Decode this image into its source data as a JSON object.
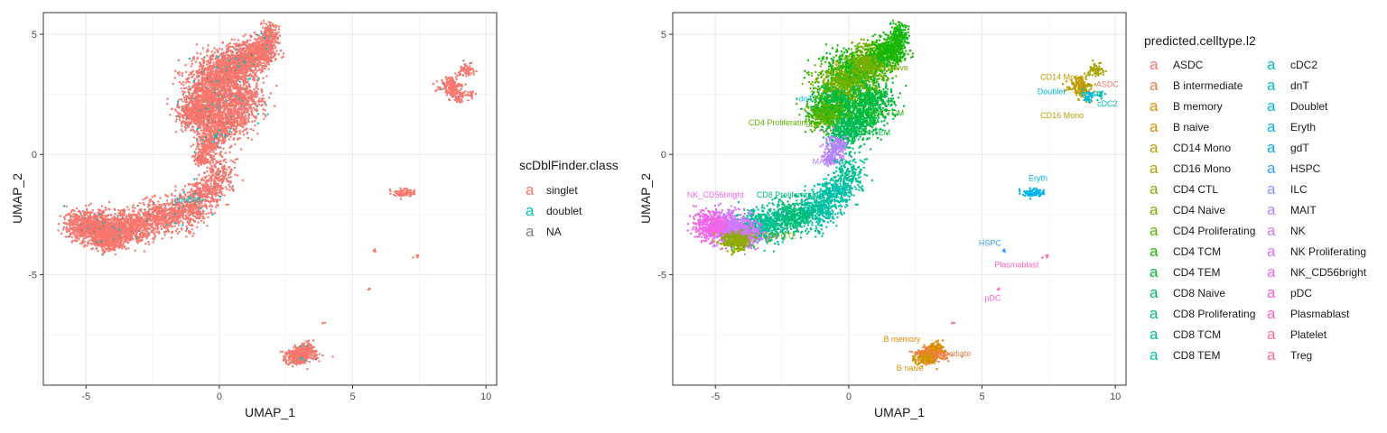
{
  "chart_data": [
    {
      "type": "scatter",
      "xlabel": "UMAP_1",
      "ylabel": "UMAP_2",
      "xlim": [
        -6.6,
        10.4
      ],
      "ylim": [
        -9.6,
        5.9
      ],
      "x_ticks": [
        -5,
        0,
        5,
        10
      ],
      "y_ticks": [
        5,
        0,
        -5
      ],
      "grid": true,
      "legend_title": "scDblFinder.class",
      "legend_position": "right",
      "series": [
        {
          "name": "singlet",
          "color": "#F8766D"
        },
        {
          "name": "doublet",
          "color": "#00BFC4"
        },
        {
          "name": "NA",
          "color": "#7F7F7F"
        }
      ],
      "annotations": [
        {
          "text": "doublet",
          "x": -1.2,
          "y": -2.0,
          "color": "#00BFC4"
        }
      ]
    },
    {
      "type": "scatter",
      "xlabel": "UMAP_1",
      "ylabel": "UMAP_2",
      "xlim": [
        -6.6,
        10.4
      ],
      "ylim": [
        -9.6,
        5.9
      ],
      "x_ticks": [
        -5,
        0,
        5,
        10
      ],
      "y_ticks": [
        5,
        0,
        -5
      ],
      "grid": true,
      "legend_title": "predicted.celltype.l2",
      "legend_position": "right",
      "series": [
        {
          "name": "ASDC",
          "color": "#F8766D"
        },
        {
          "name": "B intermediate",
          "color": "#EF7F49"
        },
        {
          "name": "B memory",
          "color": "#E38900"
        },
        {
          "name": "B naive",
          "color": "#D39200"
        },
        {
          "name": "CD14 Mono",
          "color": "#C09B00"
        },
        {
          "name": "CD16 Mono",
          "color": "#AAA200"
        },
        {
          "name": "CD4 CTL",
          "color": "#93AA00"
        },
        {
          "name": "CD4 Naive",
          "color": "#7AAF00"
        },
        {
          "name": "CD4 Proliferating",
          "color": "#5BB300"
        },
        {
          "name": "CD4 TCM",
          "color": "#1AB700"
        },
        {
          "name": "CD4 TEM",
          "color": "#00BA38"
        },
        {
          "name": "CD8 Naive",
          "color": "#00BC59"
        },
        {
          "name": "CD8 Proliferating",
          "color": "#00BE76"
        },
        {
          "name": "CD8 TCM",
          "color": "#00C08D"
        },
        {
          "name": "CD8 TEM",
          "color": "#00C1A3"
        },
        {
          "name": "cDC2",
          "color": "#00C0B8"
        },
        {
          "name": "dnT",
          "color": "#00BECB"
        },
        {
          "name": "Doublet",
          "color": "#00BADB"
        },
        {
          "name": "Eryth",
          "color": "#00B4EA"
        },
        {
          "name": "gdT",
          "color": "#00ACF7"
        },
        {
          "name": "HSPC",
          "color": "#35A2FF"
        },
        {
          "name": "ILC",
          "color": "#8B93FF"
        },
        {
          "name": "MAIT",
          "color": "#B385FF"
        },
        {
          "name": "NK",
          "color": "#CF78FF"
        },
        {
          "name": "NK Proliferating",
          "color": "#E36EF6"
        },
        {
          "name": "NK_CD56bright",
          "color": "#F166E8"
        },
        {
          "name": "pDC",
          "color": "#FC61D5"
        },
        {
          "name": "Plasmablast",
          "color": "#FF62BF"
        },
        {
          "name": "Platelet",
          "color": "#FF67A4"
        },
        {
          "name": "Treg",
          "color": "#FF6C91"
        }
      ],
      "annotations": [
        {
          "text": "CD14 Mono",
          "x": 8.0,
          "y": 3.1,
          "color": "#C09B00"
        },
        {
          "text": "ASDC",
          "x": 9.7,
          "y": 2.8,
          "color": "#F8766D"
        },
        {
          "text": "Doublet",
          "x": 7.6,
          "y": 2.5,
          "color": "#00BADB"
        },
        {
          "text": "cDC2",
          "x": 9.7,
          "y": 2.0,
          "color": "#00C0B8"
        },
        {
          "text": "CD16 Mono",
          "x": 8.0,
          "y": 1.5,
          "color": "#AAA200"
        },
        {
          "text": "CD4 Naive",
          "x": 1.5,
          "y": 3.5,
          "color": "#7AAF00"
        },
        {
          "text": "dnT",
          "x": -1.6,
          "y": 2.2,
          "color": "#00BECB"
        },
        {
          "text": "CD4 Proliferating",
          "x": -2.6,
          "y": 1.2,
          "color": "#5BB300"
        },
        {
          "text": "CD4 TCM",
          "x": 1.4,
          "y": 1.6,
          "color": "#1AB700"
        },
        {
          "text": "CD4 TEM",
          "x": 0.9,
          "y": 0.8,
          "color": "#00BA38"
        },
        {
          "text": "MAIT",
          "x": -1.0,
          "y": -0.4,
          "color": "#B385FF"
        },
        {
          "text": "Eryth",
          "x": 7.1,
          "y": -1.1,
          "color": "#00B4EA"
        },
        {
          "text": "NK_CD56bright",
          "x": -5.0,
          "y": -1.8,
          "color": "#F166E8"
        },
        {
          "text": "CD8 Proliferating",
          "x": -2.3,
          "y": -1.8,
          "color": "#00BE76"
        },
        {
          "text": "CD4 CTL",
          "x": -2.6,
          "y": -3.5,
          "color": "#93AA00"
        },
        {
          "text": "HSPC",
          "x": 5.3,
          "y": -3.8,
          "color": "#35A2FF"
        },
        {
          "text": "Plasmablast",
          "x": 6.3,
          "y": -4.7,
          "color": "#FF62BF"
        },
        {
          "text": "pDC",
          "x": 5.4,
          "y": -6.1,
          "color": "#FC61D5"
        },
        {
          "text": "B memory",
          "x": 2.0,
          "y": -7.8,
          "color": "#E38900"
        },
        {
          "text": "B intermediate",
          "x": 3.6,
          "y": -8.4,
          "color": "#EF7F49"
        },
        {
          "text": "B naive",
          "x": 2.3,
          "y": -9.0,
          "color": "#D39200"
        }
      ]
    }
  ]
}
